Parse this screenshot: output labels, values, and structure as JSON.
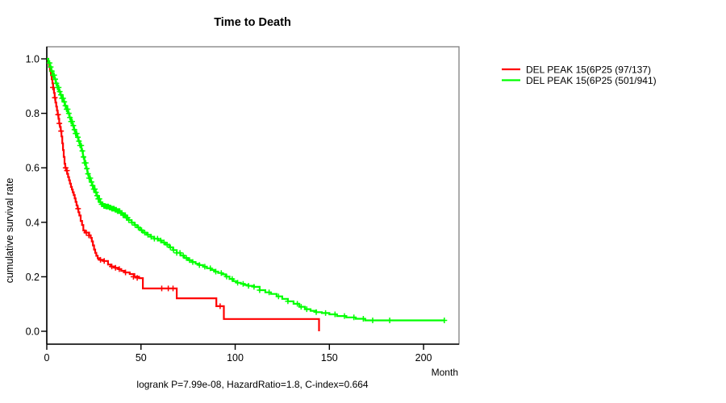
{
  "chart_data": {
    "type": "line",
    "subtype": "kaplan-meier-step-survival",
    "title": "Time to Death",
    "xlabel": "Month",
    "ylabel": "cumulative survival rate",
    "caption": "logrank P=7.99e-08, HazardRatio=1.8, C-index=0.664",
    "grid": false,
    "xlim": [
      0,
      218.8
    ],
    "ylim": [
      0.0,
      1.0
    ],
    "x_ticks": [
      "0",
      "50",
      "100",
      "150",
      "200"
    ],
    "x_tick_values": [
      0,
      50,
      100,
      150,
      200
    ],
    "y_ticks": [
      "0.0",
      "0.2",
      "0.4",
      "0.6",
      "0.8",
      "1.0"
    ],
    "y_tick_values": [
      0.0,
      0.2,
      0.4,
      0.6,
      0.8,
      1.0
    ],
    "legend_position": "right-outside",
    "legend": [
      {
        "label": "DEL PEAK 15(6P25 (97/137)",
        "color": "#FF0000"
      },
      {
        "label": "DEL PEAK 15(6P25 (501/941)",
        "color": "#00FF00"
      }
    ],
    "series": [
      {
        "name": "DEL PEAK 15(6P25 (97/137)",
        "color": "#FF0000",
        "points": [
          [
            0,
            1.0
          ],
          [
            0.7,
            0.985
          ],
          [
            1.2,
            0.97
          ],
          [
            1.7,
            0.955
          ],
          [
            2.2,
            0.94
          ],
          [
            2.6,
            0.925
          ],
          [
            3.0,
            0.91
          ],
          [
            3.4,
            0.893
          ],
          [
            3.8,
            0.875
          ],
          [
            4.2,
            0.857
          ],
          [
            4.6,
            0.84
          ],
          [
            5.0,
            0.825
          ],
          [
            5.4,
            0.81
          ],
          [
            5.8,
            0.795
          ],
          [
            6.2,
            0.78
          ],
          [
            6.6,
            0.763
          ],
          [
            7.0,
            0.75
          ],
          [
            7.4,
            0.735
          ],
          [
            7.8,
            0.715
          ],
          [
            8.2,
            0.69
          ],
          [
            8.6,
            0.665
          ],
          [
            9.0,
            0.64
          ],
          [
            9.4,
            0.615
          ],
          [
            9.8,
            0.6
          ],
          [
            10.3,
            0.59
          ],
          [
            10.8,
            0.578
          ],
          [
            11.3,
            0.566
          ],
          [
            11.8,
            0.554
          ],
          [
            12.3,
            0.542
          ],
          [
            12.8,
            0.53
          ],
          [
            13.3,
            0.52
          ],
          [
            13.8,
            0.51
          ],
          [
            14.3,
            0.5
          ],
          [
            14.8,
            0.488
          ],
          [
            15.3,
            0.475
          ],
          [
            15.8,
            0.462
          ],
          [
            16.3,
            0.45
          ],
          [
            16.8,
            0.437
          ],
          [
            17.3,
            0.425
          ],
          [
            18.0,
            0.405
          ],
          [
            18.7,
            0.39
          ],
          [
            19.4,
            0.37
          ],
          [
            20.2,
            0.362
          ],
          [
            22.5,
            0.352
          ],
          [
            23.3,
            0.343
          ],
          [
            23.9,
            0.33
          ],
          [
            24.5,
            0.315
          ],
          [
            25.1,
            0.3
          ],
          [
            25.7,
            0.288
          ],
          [
            26.3,
            0.277
          ],
          [
            27.0,
            0.268
          ],
          [
            28.0,
            0.262
          ],
          [
            30.0,
            0.258
          ],
          [
            32.5,
            0.245
          ],
          [
            34.0,
            0.238
          ],
          [
            36.0,
            0.233
          ],
          [
            38.0,
            0.228
          ],
          [
            39.5,
            0.222
          ],
          [
            41.5,
            0.216
          ],
          [
            44.0,
            0.21
          ],
          [
            46.5,
            0.2
          ],
          [
            49.0,
            0.195
          ],
          [
            51.0,
            0.157
          ],
          [
            69.0,
            0.121
          ],
          [
            90.0,
            0.092
          ],
          [
            94.0,
            0.045
          ],
          [
            144.5,
            0.0
          ]
        ],
        "censor_marks": [
          [
            3.2,
            0.895
          ],
          [
            4.3,
            0.857
          ],
          [
            6.0,
            0.795
          ],
          [
            6.7,
            0.763
          ],
          [
            7.6,
            0.735
          ],
          [
            10.0,
            0.6
          ],
          [
            10.7,
            0.59
          ],
          [
            16.6,
            0.45
          ],
          [
            21.0,
            0.362
          ],
          [
            22.3,
            0.352
          ],
          [
            28.5,
            0.262
          ],
          [
            30.5,
            0.258
          ],
          [
            34.5,
            0.238
          ],
          [
            36.5,
            0.233
          ],
          [
            38.5,
            0.228
          ],
          [
            41.8,
            0.216
          ],
          [
            46.0,
            0.2
          ],
          [
            48.0,
            0.196
          ],
          [
            61.0,
            0.157
          ],
          [
            64.5,
            0.157
          ],
          [
            67.0,
            0.157
          ],
          [
            92.0,
            0.092
          ]
        ],
        "censor_ranges": []
      },
      {
        "name": "DEL PEAK 15(6P25 (501/941)",
        "color": "#00FF00",
        "points": [
          [
            0,
            1.0
          ],
          [
            0.8,
            0.985
          ],
          [
            1.6,
            0.97
          ],
          [
            2.4,
            0.955
          ],
          [
            3.2,
            0.94
          ],
          [
            4.0,
            0.925
          ],
          [
            4.8,
            0.91
          ],
          [
            5.6,
            0.895
          ],
          [
            6.4,
            0.88
          ],
          [
            7.2,
            0.868
          ],
          [
            8.0,
            0.855
          ],
          [
            8.8,
            0.842
          ],
          [
            9.6,
            0.828
          ],
          [
            10.4,
            0.815
          ],
          [
            11.2,
            0.8
          ],
          [
            12.0,
            0.785
          ],
          [
            12.8,
            0.77
          ],
          [
            13.6,
            0.755
          ],
          [
            14.4,
            0.74
          ],
          [
            15.2,
            0.726
          ],
          [
            16.0,
            0.712
          ],
          [
            16.8,
            0.698
          ],
          [
            17.6,
            0.682
          ],
          [
            18.4,
            0.662
          ],
          [
            19.2,
            0.64
          ],
          [
            20.0,
            0.618
          ],
          [
            20.8,
            0.597
          ],
          [
            21.6,
            0.578
          ],
          [
            22.4,
            0.562
          ],
          [
            23.2,
            0.548
          ],
          [
            24.0,
            0.535
          ],
          [
            24.8,
            0.522
          ],
          [
            25.6,
            0.51
          ],
          [
            26.4,
            0.498
          ],
          [
            27.2,
            0.486
          ],
          [
            28.0,
            0.474
          ],
          [
            29.0,
            0.466
          ],
          [
            30.0,
            0.46
          ],
          [
            31.5,
            0.458
          ],
          [
            33.0,
            0.454
          ],
          [
            34.5,
            0.45
          ],
          [
            36.0,
            0.446
          ],
          [
            37.5,
            0.441
          ],
          [
            39.0,
            0.434
          ],
          [
            40.5,
            0.426
          ],
          [
            42.0,
            0.417
          ],
          [
            43.5,
            0.408
          ],
          [
            45.0,
            0.399
          ],
          [
            46.5,
            0.39
          ],
          [
            48.0,
            0.381
          ],
          [
            49.5,
            0.371
          ],
          [
            51.0,
            0.362
          ],
          [
            53.0,
            0.354
          ],
          [
            55.0,
            0.347
          ],
          [
            57.0,
            0.34
          ],
          [
            59.0,
            0.333
          ],
          [
            61.0,
            0.326
          ],
          [
            63.0,
            0.318
          ],
          [
            65.0,
            0.308
          ],
          [
            67.0,
            0.298
          ],
          [
            69.0,
            0.288
          ],
          [
            71.0,
            0.278
          ],
          [
            73.0,
            0.269
          ],
          [
            75.0,
            0.261
          ],
          [
            77.0,
            0.254
          ],
          [
            79.0,
            0.248
          ],
          [
            81.0,
            0.243
          ],
          [
            83.0,
            0.237
          ],
          [
            85.0,
            0.231
          ],
          [
            87.0,
            0.225
          ],
          [
            89.0,
            0.219
          ],
          [
            91.0,
            0.214
          ],
          [
            93.0,
            0.209
          ],
          [
            95.0,
            0.201
          ],
          [
            97.0,
            0.192
          ],
          [
            99.0,
            0.184
          ],
          [
            101,
            0.178
          ],
          [
            103,
            0.174
          ],
          [
            105,
            0.17
          ],
          [
            107,
            0.167
          ],
          [
            110,
            0.163
          ],
          [
            113,
            0.151
          ],
          [
            116,
            0.143
          ],
          [
            119,
            0.137
          ],
          [
            122,
            0.128
          ],
          [
            125,
            0.119
          ],
          [
            128,
            0.11
          ],
          [
            131,
            0.101
          ],
          [
            134,
            0.09
          ],
          [
            137,
            0.081
          ],
          [
            140,
            0.075
          ],
          [
            143,
            0.07
          ],
          [
            146,
            0.067
          ],
          [
            150,
            0.062
          ],
          [
            154,
            0.056
          ],
          [
            159,
            0.051
          ],
          [
            164,
            0.046
          ],
          [
            169,
            0.04
          ],
          [
            211,
            0.04
          ]
        ],
        "censor_marks": [
          [
            135,
            0.09
          ],
          [
            173,
            0.04
          ],
          [
            182,
            0.04
          ],
          [
            211,
            0.04
          ]
        ],
        "censor_ranges": [
          {
            "start": 1.5,
            "end": 44,
            "step": 0.6
          },
          {
            "start": 45.2,
            "end": 79,
            "step": 1.7
          },
          {
            "start": 81,
            "end": 110,
            "step": 2.9
          },
          {
            "start": 113,
            "end": 169,
            "step": 5.0
          }
        ]
      }
    ]
  }
}
